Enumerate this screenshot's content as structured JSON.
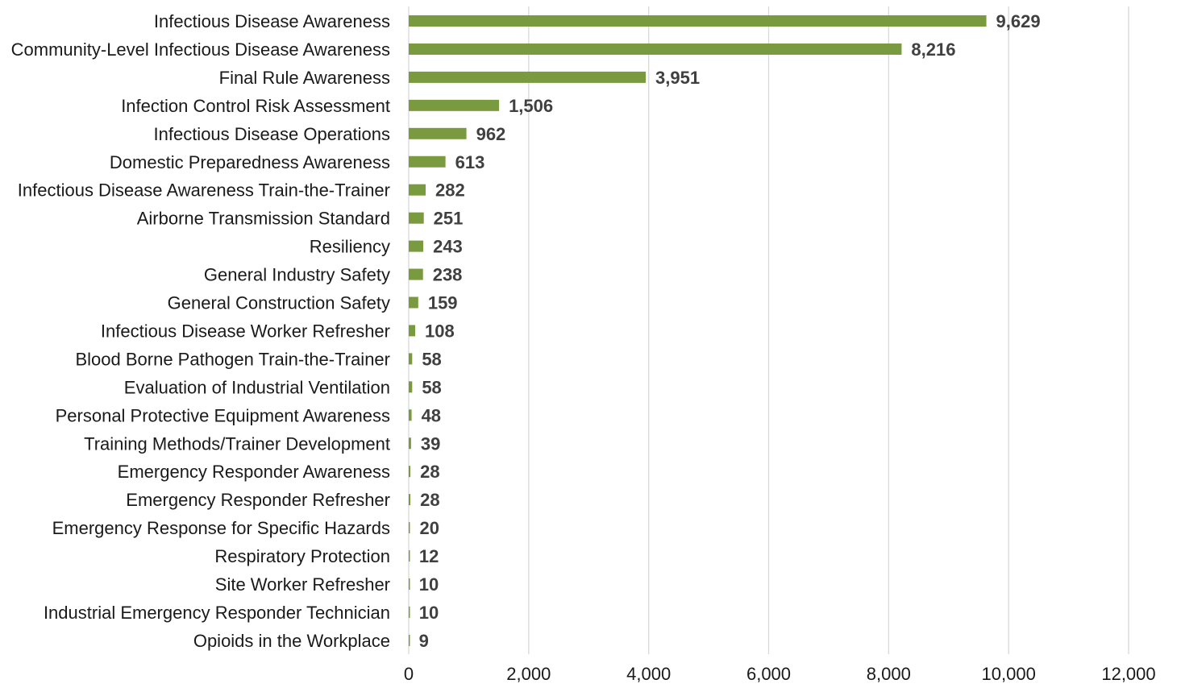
{
  "chart_data": {
    "type": "bar",
    "orientation": "horizontal",
    "title": "",
    "xlabel": "",
    "ylabel": "",
    "xlim": [
      0,
      12000
    ],
    "xticks": [
      0,
      2000,
      4000,
      6000,
      8000,
      10000,
      12000
    ],
    "xtick_labels": [
      "0",
      "2,000",
      "4,000",
      "6,000",
      "8,000",
      "10,000",
      "12,000"
    ],
    "grid": "vertical",
    "legend": "none",
    "bar_color": "#7a9a3f",
    "categories": [
      "Infectious Disease Awareness",
      "Community-Level Infectious Disease Awareness",
      "Final Rule Awareness",
      "Infection Control Risk Assessment",
      "Infectious Disease Operations",
      "Domestic Preparedness Awareness",
      "Infectious Disease Awareness Train-the-Trainer",
      "Airborne Transmission Standard",
      "Resiliency",
      "General Industry Safety",
      "General Construction Safety",
      "Infectious Disease Worker Refresher",
      "Blood Borne Pathogen Train-the-Trainer",
      "Evaluation of Industrial Ventilation",
      "Personal Protective Equipment Awareness",
      "Training Methods/Trainer Development",
      "Emergency Responder Awareness",
      "Emergency Responder Refresher",
      "Emergency Response for Specific Hazards",
      "Respiratory Protection",
      "Site Worker Refresher",
      "Industrial Emergency Responder Technician",
      "Opioids in the Workplace"
    ],
    "values": [
      9629,
      8216,
      3951,
      1506,
      962,
      613,
      282,
      251,
      243,
      238,
      159,
      108,
      58,
      58,
      48,
      39,
      28,
      28,
      20,
      12,
      10,
      10,
      9
    ],
    "value_labels": [
      "9,629",
      "8,216",
      "3,951",
      "1,506",
      "962",
      "613",
      "282",
      "251",
      "243",
      "238",
      "159",
      "108",
      "58",
      "58",
      "48",
      "39",
      "28",
      "28",
      "20",
      "12",
      "10",
      "10",
      "9"
    ]
  }
}
